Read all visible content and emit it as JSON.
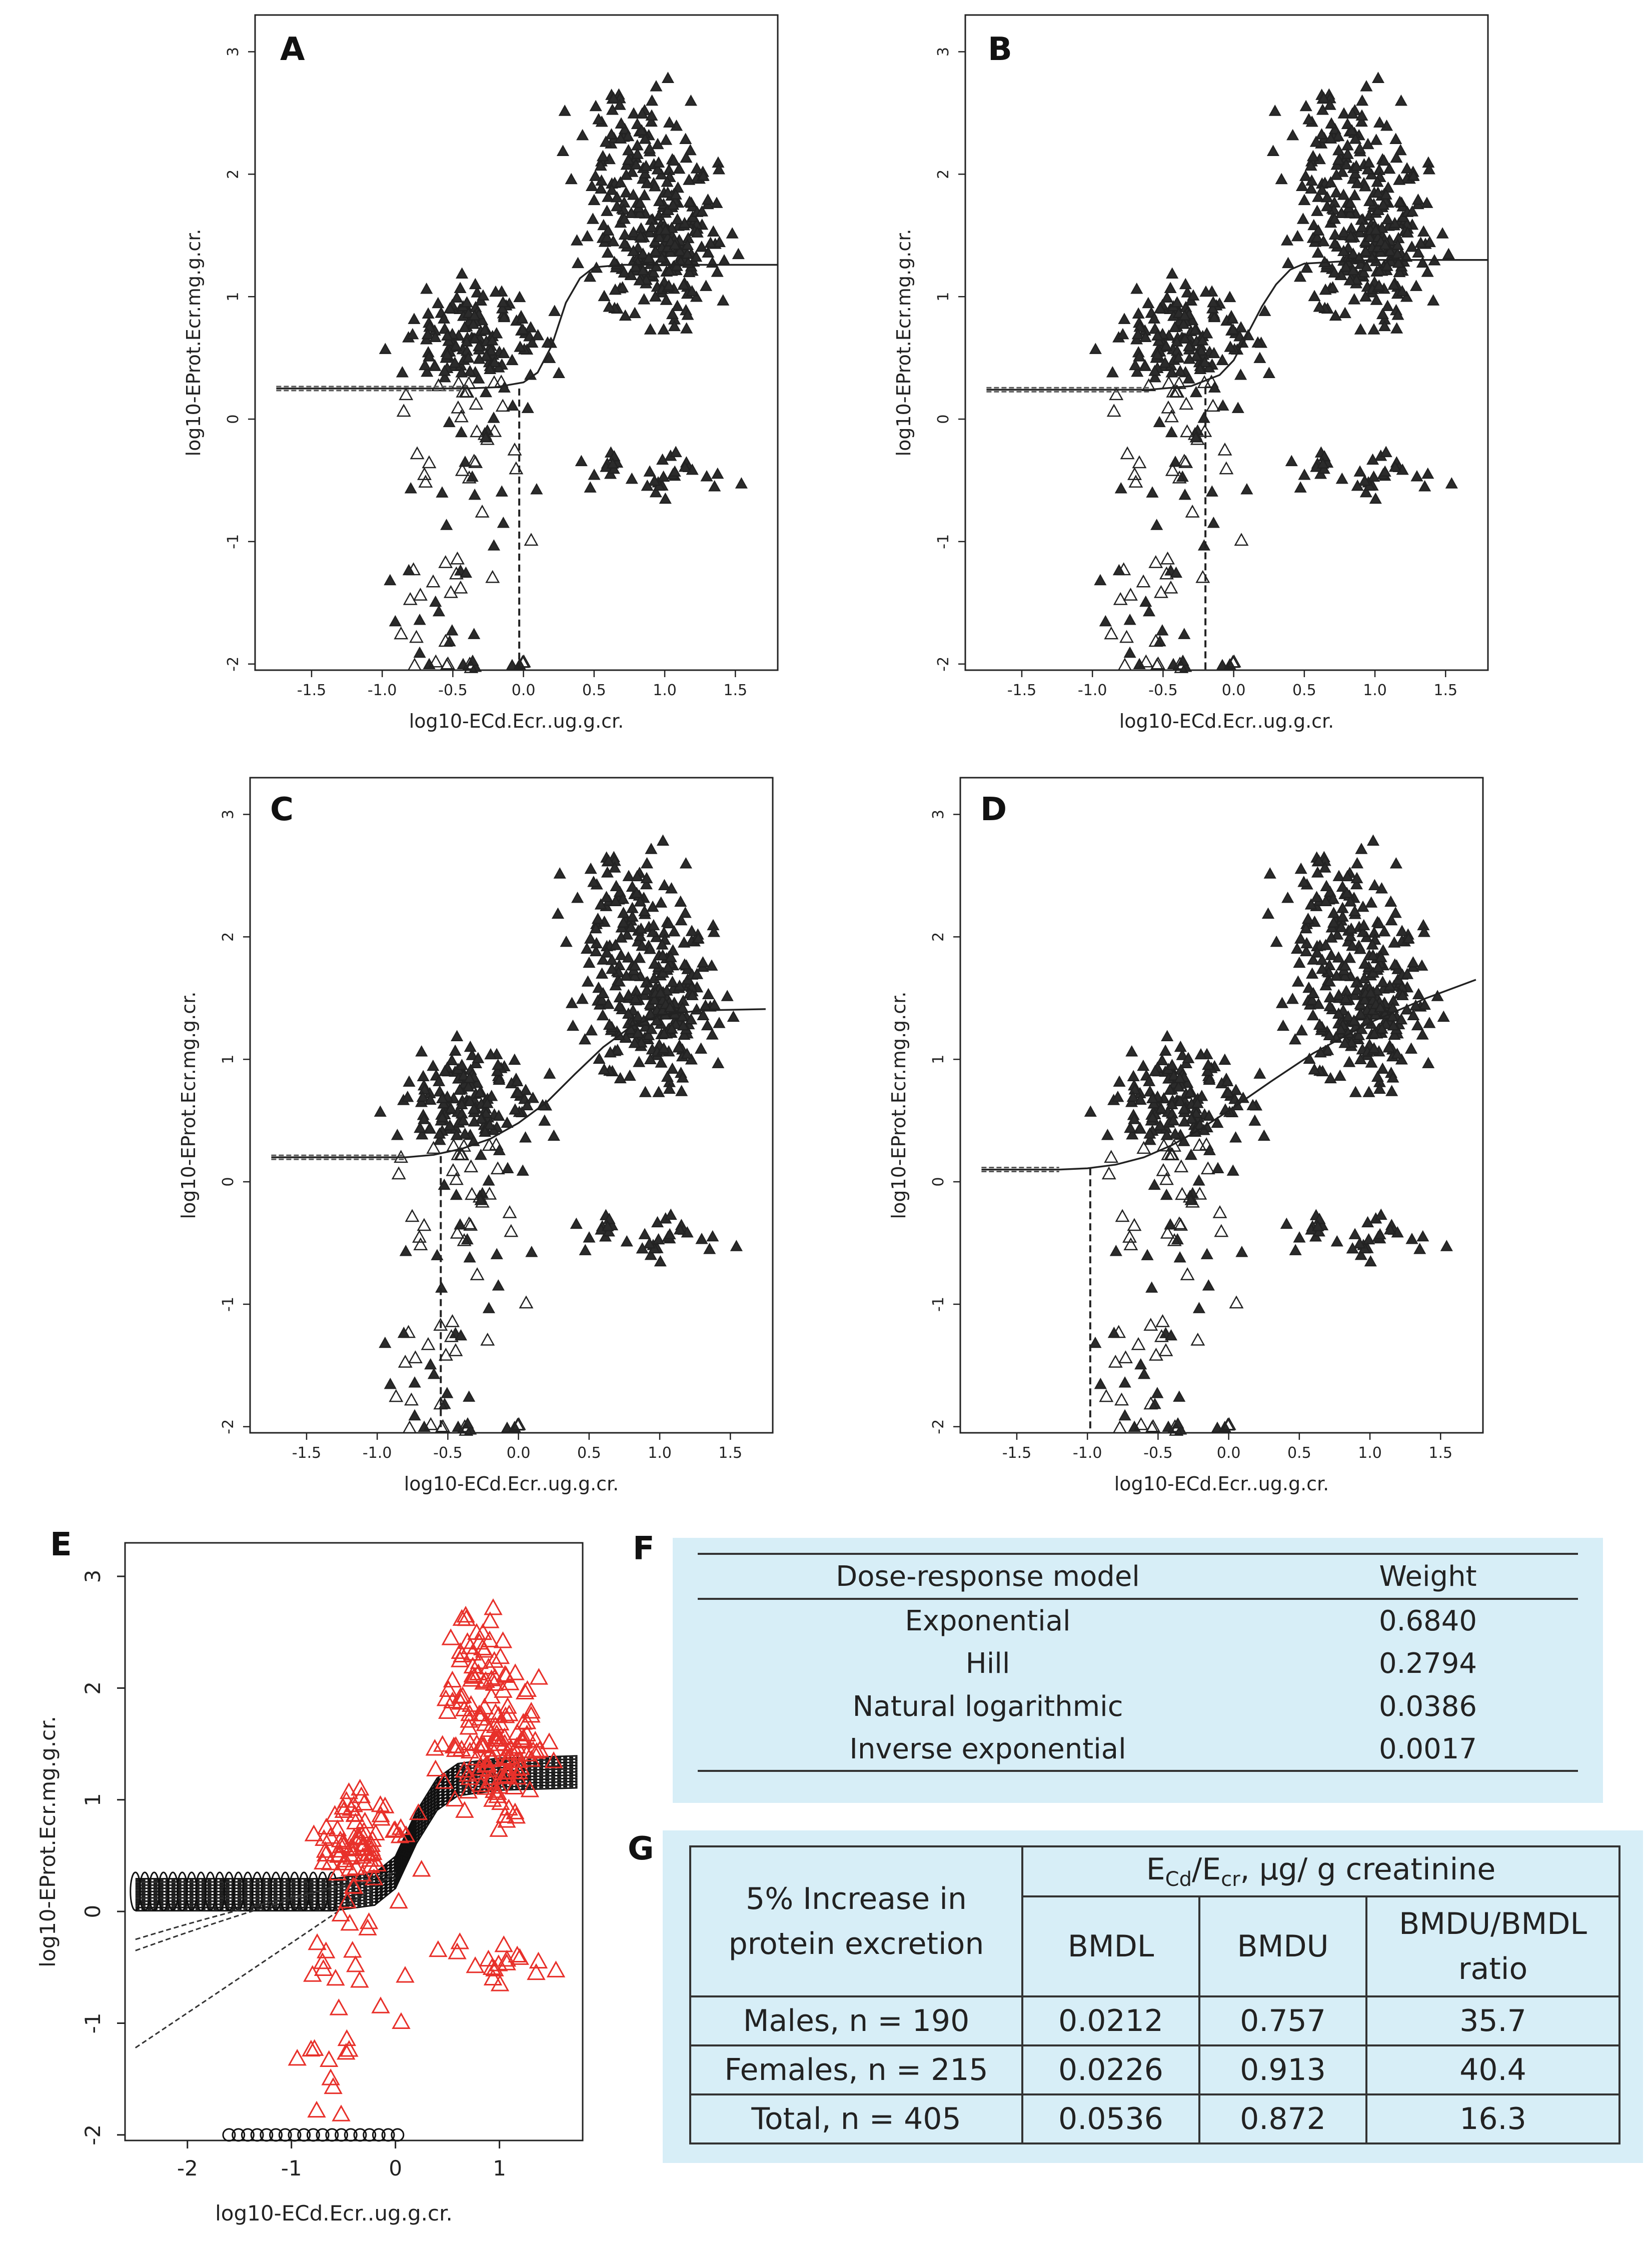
{
  "figure": {
    "letters": {
      "e": "E",
      "f": "F",
      "g": "G"
    }
  },
  "chart_data": [
    {
      "panel": "A",
      "type": "scatter",
      "xlabel": "log10-ECd.Ecr..ug.g.cr.",
      "ylabel": "log10-EProt.Ecr.mg.g.cr.",
      "xticks": [
        "-1.5",
        "-1.0",
        "-0.5",
        "0.0",
        "0.5",
        "1.0",
        "1.5"
      ],
      "yticks": [
        "-2",
        "-1",
        "0",
        "1",
        "2",
        "3"
      ],
      "xlim": [
        -1.9,
        1.8
      ],
      "ylim": [
        -2.05,
        3.3
      ],
      "fit": "exponential",
      "fit_curve": {
        "x": [
          -1.75,
          -0.4,
          -0.2,
          0.0,
          0.1,
          0.2,
          0.3,
          0.4,
          0.5,
          0.7,
          1.0,
          1.8
        ],
        "y": [
          0.25,
          0.25,
          0.26,
          0.3,
          0.38,
          0.6,
          0.95,
          1.15,
          1.24,
          1.26,
          1.26,
          1.26
        ]
      },
      "bmd_line": {
        "x": -0.03,
        "y": 0.25
      }
    },
    {
      "panel": "B",
      "type": "scatter",
      "xlabel": "log10-ECd.Ecr..ug.g.cr.",
      "ylabel": "log10-EProt.Ecr.mg.g.cr.",
      "xticks": [
        "-1.5",
        "-1.0",
        "-0.5",
        "0.0",
        "0.5",
        "1.0",
        "1.5"
      ],
      "yticks": [
        "-2",
        "-1",
        "0",
        "1",
        "2",
        "3"
      ],
      "xlim": [
        -1.9,
        1.8
      ],
      "ylim": [
        -2.05,
        3.3
      ],
      "fit": "hill",
      "fit_curve": {
        "x": [
          -1.75,
          -0.6,
          -0.3,
          -0.1,
          0.0,
          0.1,
          0.2,
          0.3,
          0.4,
          0.5,
          0.8,
          1.0,
          1.8
        ],
        "y": [
          0.24,
          0.24,
          0.27,
          0.36,
          0.48,
          0.7,
          0.92,
          1.1,
          1.22,
          1.27,
          1.29,
          1.3,
          1.3
        ]
      },
      "bmd_line": {
        "x": -0.2,
        "y": 0.26
      }
    },
    {
      "panel": "C",
      "type": "scatter",
      "xlabel": "log10-ECd.Ecr..ug.g.cr.",
      "ylabel": "log10-EProt.Ecr.mg.g.cr.",
      "xticks": [
        "-1.5",
        "-1.0",
        "-0.5",
        "0.0",
        "0.5",
        "1.0",
        "1.5"
      ],
      "yticks": [
        "-2",
        "-1",
        "0",
        "1",
        "2",
        "3"
      ],
      "xlim": [
        -1.9,
        1.8
      ],
      "ylim": [
        -2.05,
        3.3
      ],
      "fit": "natural logarithmic",
      "fit_curve": {
        "x": [
          -1.75,
          -0.8,
          -0.6,
          -0.4,
          -0.2,
          0.0,
          0.2,
          0.4,
          0.6,
          0.8,
          1.0,
          1.3,
          1.75
        ],
        "y": [
          0.2,
          0.2,
          0.22,
          0.27,
          0.35,
          0.48,
          0.65,
          0.88,
          1.1,
          1.27,
          1.36,
          1.4,
          1.41
        ]
      },
      "bmd_line": {
        "x": -0.55,
        "y": 0.21
      }
    },
    {
      "panel": "D",
      "type": "scatter",
      "xlabel": "log10-ECd.Ecr..ug.g.cr.",
      "ylabel": "log10-EProt.Ecr.mg.g.cr.",
      "xticks": [
        "-1.5",
        "-1.0",
        "-0.5",
        "0.0",
        "0.5",
        "1.0",
        "1.5"
      ],
      "yticks": [
        "-2",
        "-1",
        "0",
        "1",
        "2",
        "3"
      ],
      "xlim": [
        -1.9,
        1.8
      ],
      "ylim": [
        -2.05,
        3.3
      ],
      "fit": "inverse exponential",
      "fit_curve": {
        "x": [
          -1.75,
          -1.2,
          -1.0,
          -0.8,
          -0.6,
          -0.4,
          -0.2,
          0.0,
          0.3,
          0.6,
          1.0,
          1.4,
          1.75
        ],
        "y": [
          0.1,
          0.1,
          0.11,
          0.14,
          0.2,
          0.3,
          0.43,
          0.58,
          0.82,
          1.05,
          1.3,
          1.5,
          1.65
        ]
      },
      "bmd_line": {
        "x": -0.98,
        "y": 0.11
      }
    },
    {
      "panel": "E",
      "type": "scatter",
      "xlabel": "log10-ECd.Ecr..ug.g.cr.",
      "ylabel": "log10-EProt.Ecr.mg.g.cr.",
      "xticks": [
        "-2",
        "-1",
        "0",
        "1"
      ],
      "yticks": [
        "-2",
        "-1",
        "0",
        "1",
        "2",
        "3"
      ],
      "xlim": [
        -2.6,
        1.8
      ],
      "ylim": [
        -2.05,
        3.3
      ],
      "marker_color": "#e8302a",
      "curve_color": "#111111",
      "band": {
        "x": [
          -2.5,
          -0.6,
          -0.2,
          0.0,
          0.2,
          0.4,
          0.6,
          1.0,
          1.75
        ],
        "y": [
          0.15,
          0.15,
          0.2,
          0.35,
          0.75,
          1.05,
          1.18,
          1.23,
          1.25
        ]
      }
    }
  ],
  "table_f": {
    "headers": [
      "Dose-response model",
      "Weight"
    ],
    "rows": [
      [
        "Exponential",
        "0.6840"
      ],
      [
        "Hill",
        "0.2794"
      ],
      [
        "Natural logarithmic",
        "0.0386"
      ],
      [
        "Inverse exponential",
        "0.0017"
      ]
    ]
  },
  "table_g": {
    "corner_line1": "5% Increase in",
    "corner_line2": "protein excretion",
    "group_header": "E",
    "group_sub1": "Cd",
    "group_mid": "/E",
    "group_sub2": "cr",
    "group_tail": ", μg/ g creatinine",
    "col_bmdl": "BMDL",
    "col_bmdu": "BMDU",
    "col_ratio_line1": "BMDU/BMDL",
    "col_ratio_line2": "ratio",
    "rows": [
      [
        "Males, n = 190",
        "0.0212",
        "0.757",
        "35.7"
      ],
      [
        "Females, n = 215",
        "0.0226",
        "0.913",
        "40.4"
      ],
      [
        "Total, n = 405",
        "0.0536",
        "0.872",
        "16.3"
      ]
    ]
  },
  "colors": {
    "table_background": "#d7eef7",
    "marker_dark": "#2b2b2b",
    "marker_red": "#e8302a"
  }
}
